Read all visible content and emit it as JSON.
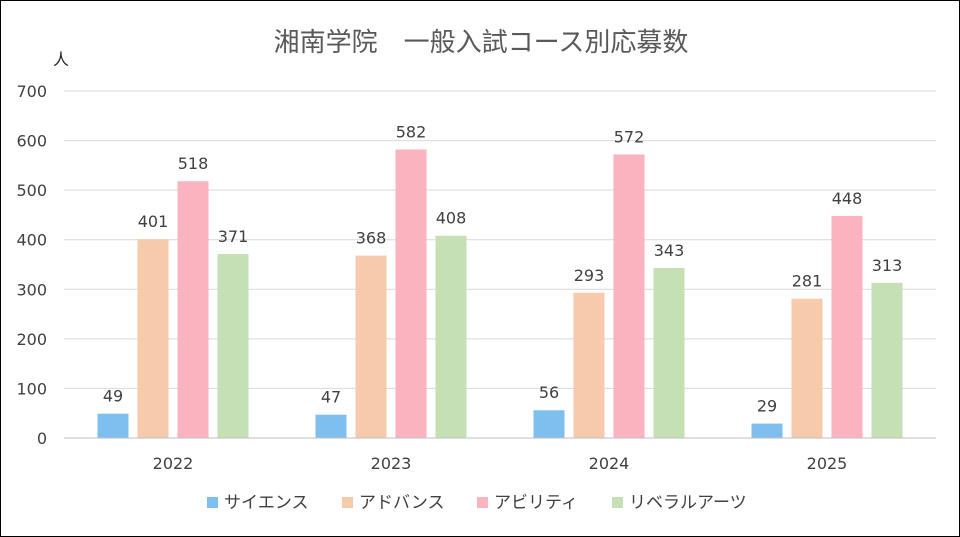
{
  "chart_data": {
    "type": "bar",
    "title": "湘南学院　一般入試コース別応募数",
    "ylabel": "人",
    "xlabel": "",
    "categories": [
      "2022",
      "2023",
      "2024",
      "2025"
    ],
    "ylim": [
      0,
      700
    ],
    "yticks": [
      0,
      100,
      200,
      300,
      400,
      500,
      600,
      700
    ],
    "grid": true,
    "legend_position": "bottom",
    "series": [
      {
        "name": "サイエンス",
        "color": "#7fbfef",
        "values": [
          49,
          47,
          56,
          29
        ]
      },
      {
        "name": "アドバンス",
        "color": "#f7caac",
        "values": [
          401,
          368,
          293,
          281
        ]
      },
      {
        "name": "アビリティ",
        "color": "#fbb3bf",
        "values": [
          518,
          582,
          572,
          448
        ]
      },
      {
        "name": "リベラルアーツ",
        "color": "#c5e0b4",
        "values": [
          371,
          408,
          343,
          313
        ]
      }
    ]
  }
}
